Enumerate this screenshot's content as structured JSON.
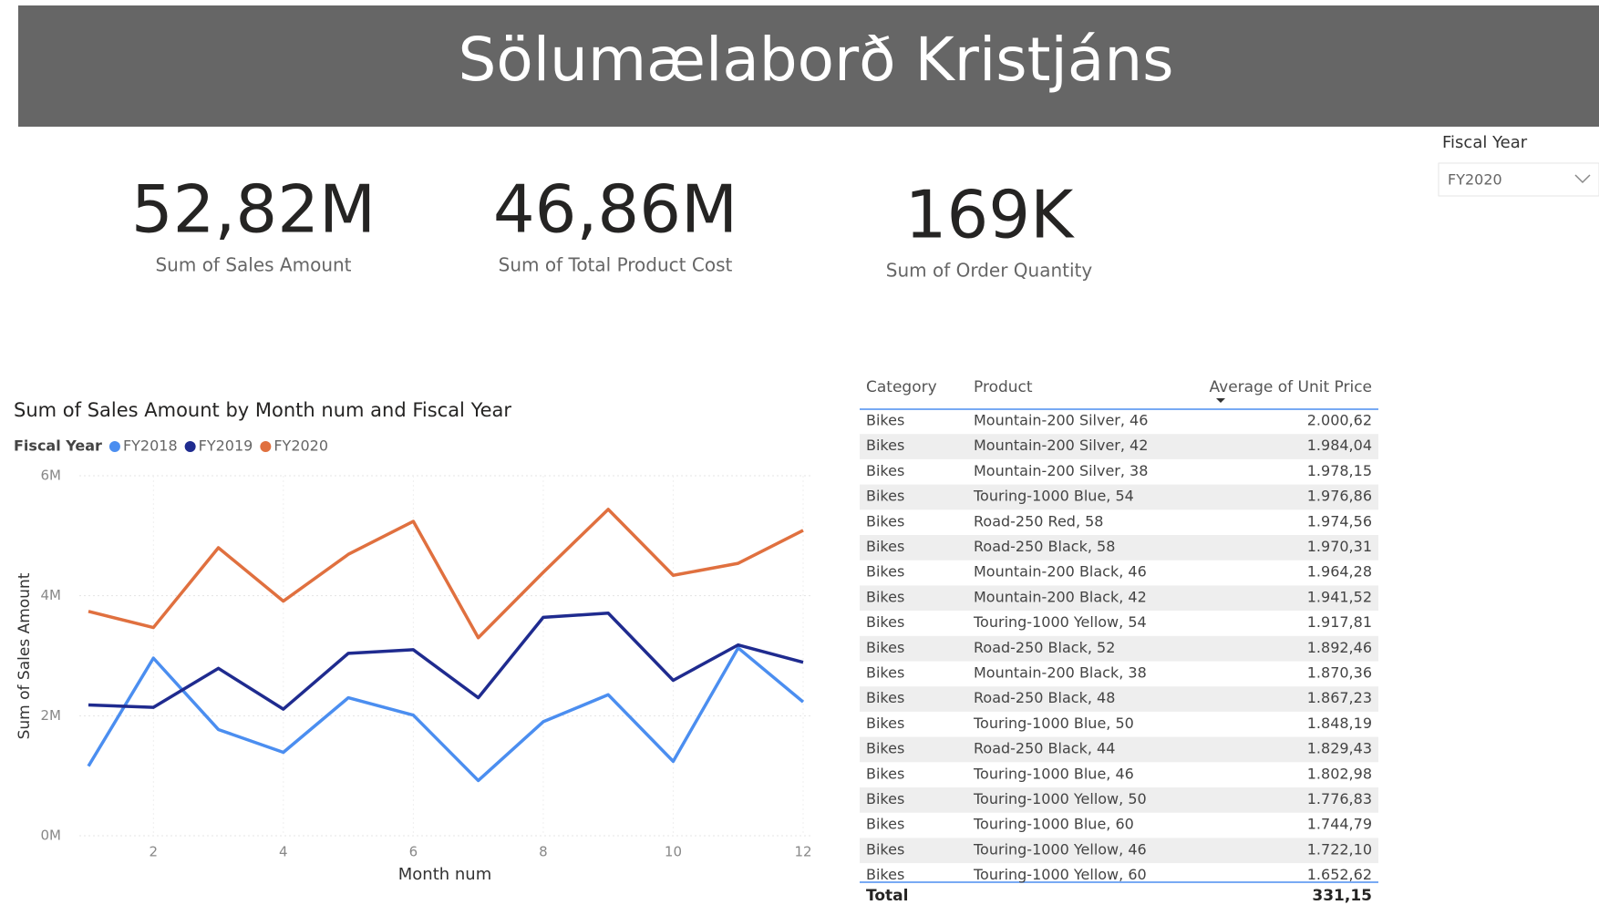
{
  "header": {
    "title": "Sölumælaborð Kristjáns"
  },
  "kpis": [
    {
      "value": "52,82M",
      "label": "Sum of Sales Amount"
    },
    {
      "value": "46,86M",
      "label": "Sum of Total Product Cost"
    },
    {
      "value": "169K",
      "label": "Sum of Order Quantity"
    }
  ],
  "slicer": {
    "label": "Fiscal Year",
    "value": "FY2020"
  },
  "chart_data": {
    "type": "line",
    "title": "Sum of Sales Amount by Month num and Fiscal Year",
    "legend_title": "Fiscal Year",
    "x_label": "Month num",
    "y_label": "Sum of Sales Amount",
    "x": [
      1,
      2,
      3,
      4,
      5,
      6,
      7,
      8,
      9,
      10,
      11,
      12
    ],
    "xlim": [
      1,
      12
    ],
    "xticks": [
      2,
      4,
      6,
      8,
      10,
      12
    ],
    "ylim": [
      0,
      6000000
    ],
    "yticks": [
      {
        "value": 0,
        "label": "0M"
      },
      {
        "value": 2000000,
        "label": "2M"
      },
      {
        "value": 4000000,
        "label": "4M"
      },
      {
        "value": 6000000,
        "label": "6M"
      }
    ],
    "grid": true,
    "series": [
      {
        "name": "FY2018",
        "color": "#4b8ef0",
        "values": [
          1160000,
          2960000,
          1770000,
          1390000,
          2300000,
          2010000,
          920000,
          1900000,
          2350000,
          1240000,
          3130000,
          2230000
        ]
      },
      {
        "name": "FY2019",
        "color": "#1f2b8f",
        "values": [
          2180000,
          2140000,
          2790000,
          2110000,
          3040000,
          3100000,
          2300000,
          3640000,
          3710000,
          2590000,
          3180000,
          2890000
        ]
      },
      {
        "name": "FY2020",
        "color": "#e0703f",
        "values": [
          3740000,
          3470000,
          4800000,
          3910000,
          4690000,
          5240000,
          3300000,
          4390000,
          5440000,
          4340000,
          4540000,
          5090000
        ]
      }
    ]
  },
  "table": {
    "columns": [
      "Category",
      "Product",
      "Average of Unit Price"
    ],
    "rows": [
      [
        "Bikes",
        "Mountain-200 Silver, 46",
        "2.000,62"
      ],
      [
        "Bikes",
        "Mountain-200 Silver, 42",
        "1.984,04"
      ],
      [
        "Bikes",
        "Mountain-200 Silver, 38",
        "1.978,15"
      ],
      [
        "Bikes",
        "Touring-1000 Blue, 54",
        "1.976,86"
      ],
      [
        "Bikes",
        "Road-250 Red, 58",
        "1.974,56"
      ],
      [
        "Bikes",
        "Road-250 Black, 58",
        "1.970,31"
      ],
      [
        "Bikes",
        "Mountain-200 Black, 46",
        "1.964,28"
      ],
      [
        "Bikes",
        "Mountain-200 Black, 42",
        "1.941,52"
      ],
      [
        "Bikes",
        "Touring-1000 Yellow, 54",
        "1.917,81"
      ],
      [
        "Bikes",
        "Road-250 Black, 52",
        "1.892,46"
      ],
      [
        "Bikes",
        "Mountain-200 Black, 38",
        "1.870,36"
      ],
      [
        "Bikes",
        "Road-250 Black, 48",
        "1.867,23"
      ],
      [
        "Bikes",
        "Touring-1000 Blue, 50",
        "1.848,19"
      ],
      [
        "Bikes",
        "Road-250 Black, 44",
        "1.829,43"
      ],
      [
        "Bikes",
        "Touring-1000 Blue, 46",
        "1.802,98"
      ],
      [
        "Bikes",
        "Touring-1000 Yellow, 50",
        "1.776,83"
      ],
      [
        "Bikes",
        "Touring-1000 Blue, 60",
        "1.744,79"
      ],
      [
        "Bikes",
        "Touring-1000 Yellow, 46",
        "1.722,10"
      ],
      [
        "Bikes",
        "Touring-1000 Yellow, 60",
        "1.652,62"
      ]
    ],
    "total": [
      "Total",
      "331,15"
    ]
  }
}
